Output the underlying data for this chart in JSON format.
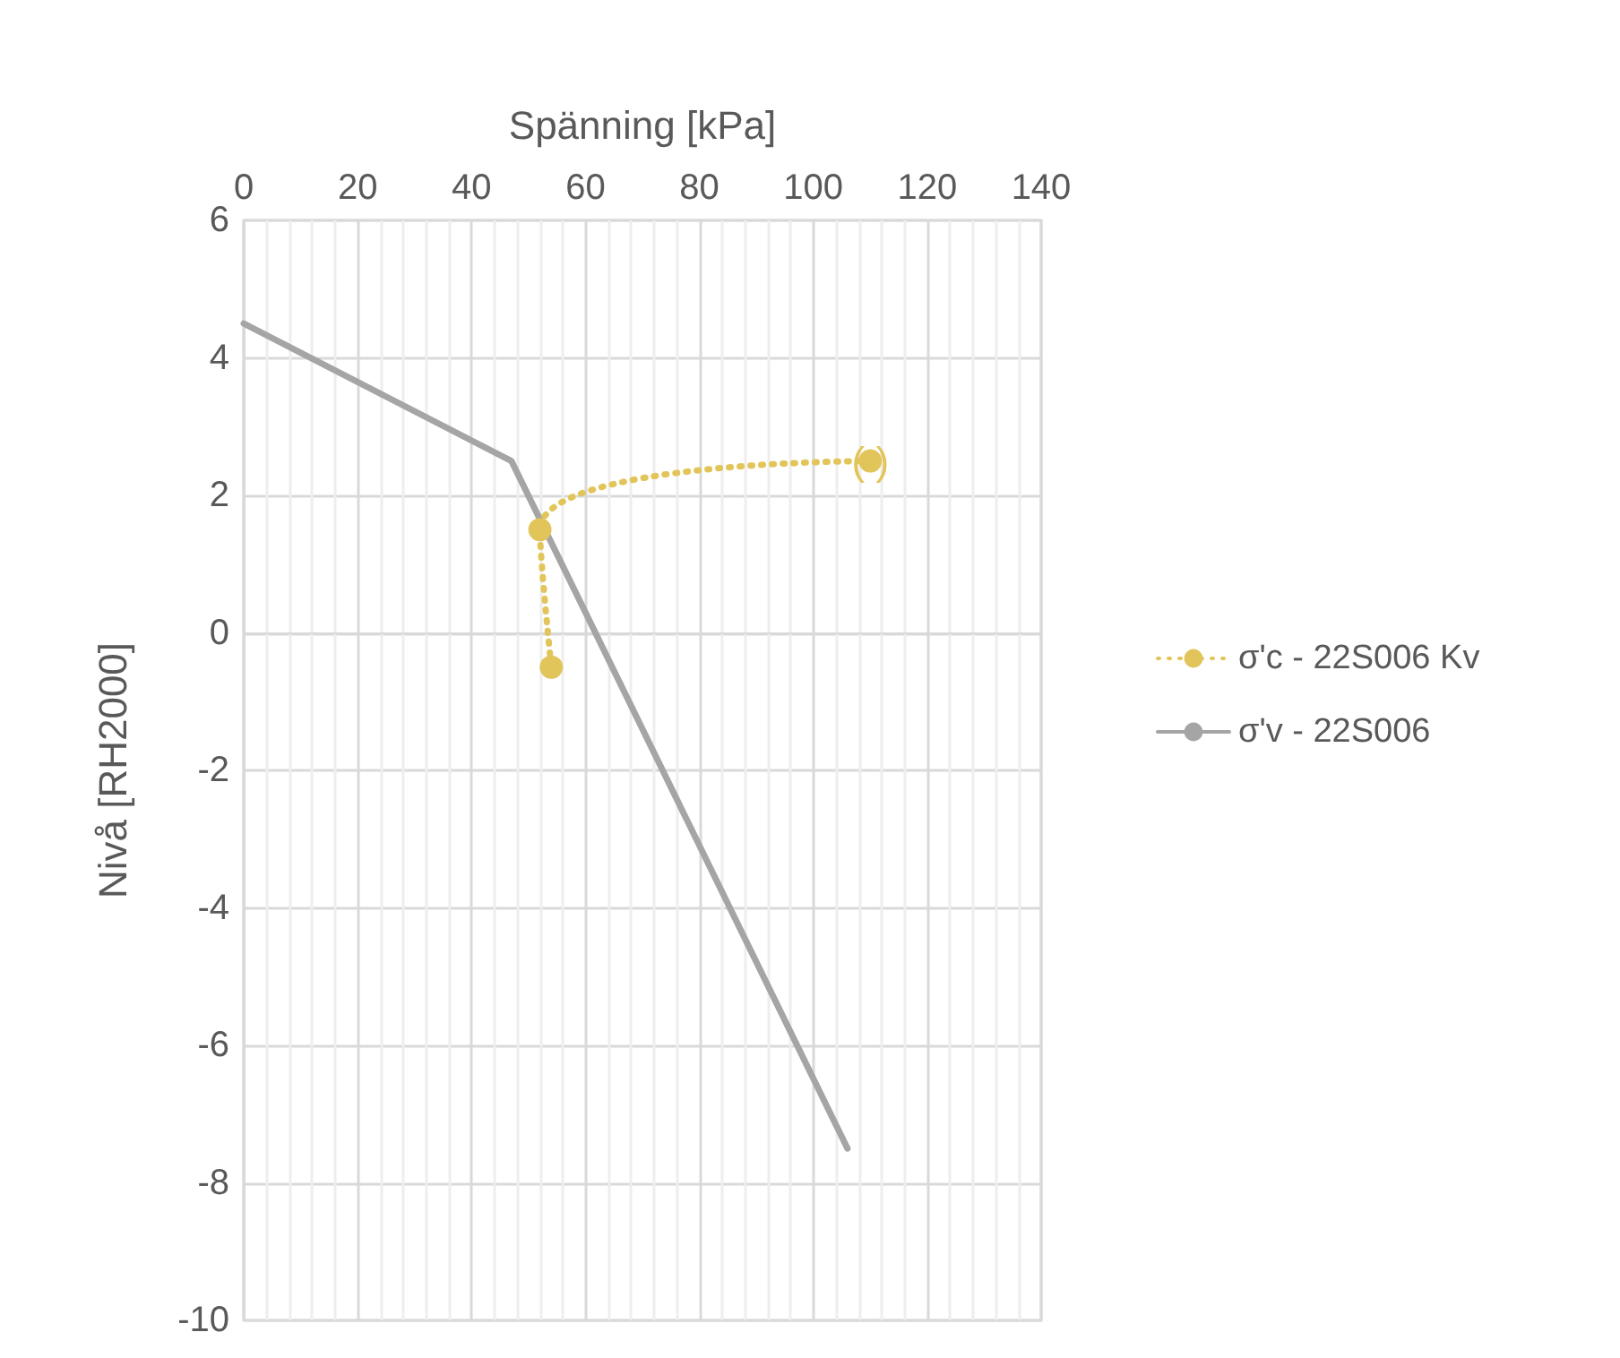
{
  "chart_data": {
    "type": "line",
    "xlabel": "Spänning [kPa]",
    "ylabel": "Nivå [RH2000]",
    "xlim": [
      0,
      140
    ],
    "xticks": [
      0,
      20,
      40,
      60,
      80,
      100,
      120,
      140
    ],
    "ylim": [
      -10,
      6
    ],
    "yticks": [
      -10,
      -8,
      -6,
      -4,
      -2,
      0,
      2,
      4,
      6
    ],
    "grid": true,
    "legend": "right",
    "series": [
      {
        "name": "σ'c - 22S006 Kv",
        "color": "#e2c55a",
        "x": [
          110,
          52,
          54
        ],
        "values": [
          2.5,
          1.5,
          -0.5
        ],
        "marker": "circle",
        "line_style": "dotted"
      },
      {
        "name": "σ'v - 22S006",
        "color": "#a5a5a5",
        "x": [
          0,
          47,
          106
        ],
        "values": [
          4.5,
          2.5,
          -7.5
        ],
        "marker": "none",
        "line_style": "solid"
      }
    ],
    "annotations": [
      {
        "text": "( )",
        "x": 110,
        "y": 2.5
      }
    ]
  }
}
